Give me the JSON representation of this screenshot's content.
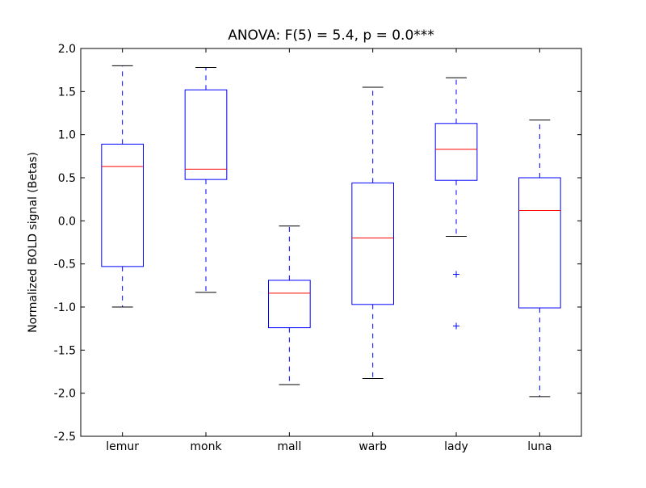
{
  "chart_data": {
    "type": "box",
    "title": "ANOVA: F(5) = 5.4, p = 0.0***",
    "xlabel": "",
    "ylabel": "Normalized BOLD signal (Betas)",
    "ylim": [
      -2.5,
      2.0
    ],
    "yticks": [
      "-2.5",
      "-2.0",
      "-1.5",
      "-1.0",
      "-0.5",
      "0.0",
      "0.5",
      "1.0",
      "1.5",
      "2.0"
    ],
    "grid": false,
    "colors": {
      "box": "#0000ff",
      "median": "#ff0000",
      "whisker": "#0000ff",
      "cap": "#000000",
      "flier": "#0000ff"
    },
    "categories": [
      "lemur",
      "monk",
      "mall",
      "warb",
      "lady",
      "luna"
    ],
    "boxes": [
      {
        "label": "lemur",
        "whislo": -1.0,
        "q1": -0.53,
        "med": 0.63,
        "q3": 0.89,
        "whishi": 1.8,
        "fliers": []
      },
      {
        "label": "monk",
        "whislo": -0.83,
        "q1": 0.48,
        "med": 0.6,
        "q3": 1.52,
        "whishi": 1.78,
        "fliers": []
      },
      {
        "label": "mall",
        "whislo": -1.9,
        "q1": -1.24,
        "med": -0.84,
        "q3": -0.69,
        "whishi": -0.06,
        "fliers": []
      },
      {
        "label": "warb",
        "whislo": -1.83,
        "q1": -0.97,
        "med": -0.2,
        "q3": 0.44,
        "whishi": 1.55,
        "fliers": []
      },
      {
        "label": "lady",
        "whislo": -0.18,
        "q1": 0.47,
        "med": 0.83,
        "q3": 1.13,
        "whishi": 1.66,
        "fliers": [
          -0.62,
          -1.22
        ]
      },
      {
        "label": "luna",
        "whislo": -2.04,
        "q1": -1.01,
        "med": 0.12,
        "q3": 0.5,
        "whishi": 1.17,
        "fliers": []
      }
    ]
  }
}
